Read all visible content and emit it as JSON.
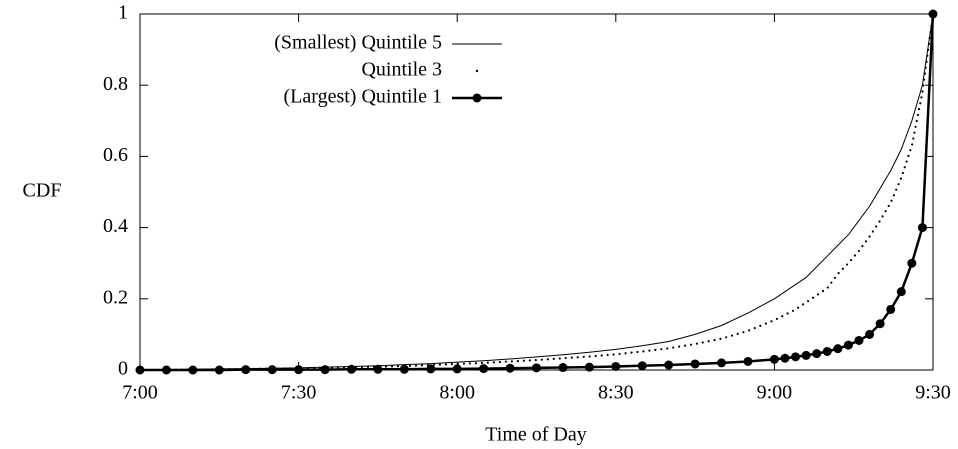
{
  "chart_data": {
    "type": "line",
    "y_label": "CDF",
    "x_label": "Time of Day",
    "x": [
      420,
      425,
      430,
      435,
      440,
      445,
      450,
      455,
      460,
      465,
      470,
      475,
      480,
      485,
      490,
      495,
      500,
      505,
      510,
      515,
      520,
      525,
      530,
      535,
      540,
      542,
      544,
      546,
      548,
      550,
      552,
      554,
      556,
      558,
      560,
      562,
      564,
      566,
      568,
      570
    ],
    "series": [
      {
        "name": "(Smallest) Quintile 5",
        "color": "#000000",
        "style": "line",
        "values": [
          0,
          0.001,
          0.002,
          0.003,
          0.004,
          0.005,
          0.006,
          0.008,
          0.01,
          0.012,
          0.015,
          0.018,
          0.022,
          0.026,
          0.031,
          0.037,
          0.043,
          0.05,
          0.058,
          0.068,
          0.08,
          0.1,
          0.125,
          0.16,
          0.2,
          0.22,
          0.24,
          0.26,
          0.29,
          0.32,
          0.35,
          0.38,
          0.42,
          0.46,
          0.51,
          0.56,
          0.62,
          0.7,
          0.8,
          1
        ]
      },
      {
        "name": "Quintile 3",
        "color": "#000000",
        "style": "dotted",
        "values": [
          0,
          0.001,
          0.001,
          0.002,
          0.003,
          0.004,
          0.005,
          0.006,
          0.008,
          0.009,
          0.011,
          0.014,
          0.017,
          0.02,
          0.024,
          0.028,
          0.033,
          0.038,
          0.044,
          0.052,
          0.061,
          0.073,
          0.088,
          0.11,
          0.14,
          0.155,
          0.17,
          0.19,
          0.21,
          0.23,
          0.27,
          0.3,
          0.335,
          0.375,
          0.42,
          0.47,
          0.54,
          0.63,
          0.78,
          1
        ]
      },
      {
        "name": "(Largest) Quintile 1",
        "color": "#000000",
        "style": "line-markers",
        "values": [
          0,
          0,
          0,
          0,
          0.001,
          0.001,
          0.001,
          0.001,
          0.002,
          0.002,
          0.002,
          0.003,
          0.003,
          0.004,
          0.005,
          0.006,
          0.007,
          0.008,
          0.01,
          0.012,
          0.014,
          0.017,
          0.02,
          0.024,
          0.03,
          0.033,
          0.037,
          0.041,
          0.046,
          0.052,
          0.06,
          0.07,
          0.083,
          0.1,
          0.13,
          0.17,
          0.22,
          0.3,
          0.4,
          1
        ]
      }
    ],
    "xlim": [
      420,
      570
    ],
    "xticks": [
      {
        "value": 420,
        "label": "7:00"
      },
      {
        "value": 450,
        "label": "7:30"
      },
      {
        "value": 480,
        "label": "8:00"
      },
      {
        "value": 510,
        "label": "8:30"
      },
      {
        "value": 540,
        "label": "9:00"
      },
      {
        "value": 570,
        "label": "9:30"
      }
    ],
    "ylim": [
      0,
      1
    ],
    "yticks": [
      0,
      0.2,
      0.4,
      0.6,
      0.8,
      1
    ],
    "grid": false,
    "legend": "top-left"
  }
}
